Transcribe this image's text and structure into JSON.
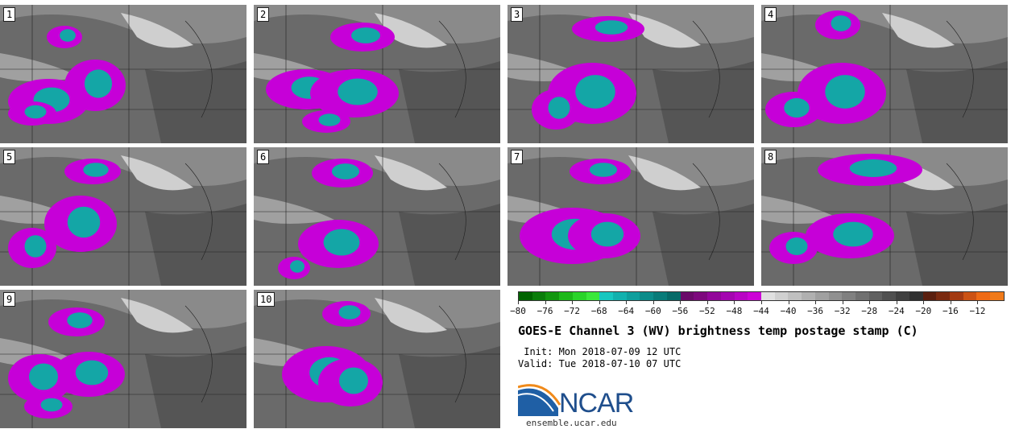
{
  "panels": [
    {
      "label": "1"
    },
    {
      "label": "2"
    },
    {
      "label": "3"
    },
    {
      "label": "4"
    },
    {
      "label": "5"
    },
    {
      "label": "6"
    },
    {
      "label": "7"
    },
    {
      "label": "8"
    },
    {
      "label": "9"
    },
    {
      "label": "10"
    }
  ],
  "colorbar": {
    "colors": [
      "#006400",
      "#0a7d0a",
      "#12960f",
      "#1db81a",
      "#2ad42a",
      "#3be83b",
      "#17c7c0",
      "#12b1ae",
      "#0f9f9d",
      "#0b8c8a",
      "#087b79",
      "#066a68",
      "#6a0a6a",
      "#7d087d",
      "#92069a",
      "#a405b0",
      "#b804c4",
      "#cc03d6",
      "#e0e0e0",
      "#d0d0d0",
      "#c0c0c0",
      "#b0b0b0",
      "#a0a0a0",
      "#909090",
      "#808080",
      "#707070",
      "#606060",
      "#505050",
      "#404040",
      "#303030",
      "#5a1f0f",
      "#7a2a10",
      "#a33a12",
      "#cc5214",
      "#ee6a16",
      "#f07a1a"
    ],
    "ticks": [
      "−80",
      "−76",
      "−72",
      "−68",
      "−64",
      "−60",
      "−56",
      "−52",
      "−48",
      "−44",
      "−40",
      "−36",
      "−32",
      "−28",
      "−24",
      "−20",
      "−16",
      "−12"
    ]
  },
  "title": "GOES-E Channel 3 (WV) brightness temp postage stamp (C)",
  "init": " Init: Mon 2018-07-09 12 UTC",
  "valid": "Valid: Tue 2018-07-10 07 UTC",
  "logo_text": "NCAR",
  "url": "ensemble.ucar.edu",
  "colors": {
    "magenta": "#c600d8",
    "cyan": "#14a6a6",
    "bg_gray": "#6d6d6d"
  }
}
